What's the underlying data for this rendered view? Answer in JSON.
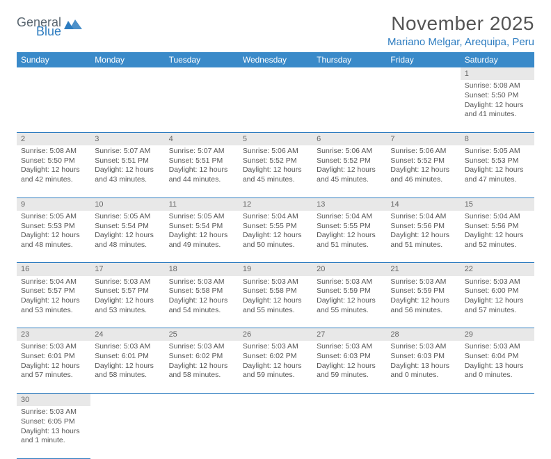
{
  "logo": {
    "general": "General",
    "blue": "Blue",
    "icon_color": "#2d7cc0"
  },
  "title": "November 2025",
  "location": "Mariano Melgar, Arequipa, Peru",
  "colors": {
    "header_bg": "#3a8ac9",
    "accent": "#2d7cc0",
    "daynum_bg": "#e8e8e8",
    "text": "#555555"
  },
  "day_headers": [
    "Sunday",
    "Monday",
    "Tuesday",
    "Wednesday",
    "Thursday",
    "Friday",
    "Saturday"
  ],
  "weeks": [
    {
      "nums": [
        "",
        "",
        "",
        "",
        "",
        "",
        "1"
      ],
      "cells": [
        null,
        null,
        null,
        null,
        null,
        null,
        {
          "sunrise": "Sunrise: 5:08 AM",
          "sunset": "Sunset: 5:50 PM",
          "daylight": "Daylight: 12 hours and 41 minutes."
        }
      ]
    },
    {
      "nums": [
        "2",
        "3",
        "4",
        "5",
        "6",
        "7",
        "8"
      ],
      "cells": [
        {
          "sunrise": "Sunrise: 5:08 AM",
          "sunset": "Sunset: 5:50 PM",
          "daylight": "Daylight: 12 hours and 42 minutes."
        },
        {
          "sunrise": "Sunrise: 5:07 AM",
          "sunset": "Sunset: 5:51 PM",
          "daylight": "Daylight: 12 hours and 43 minutes."
        },
        {
          "sunrise": "Sunrise: 5:07 AM",
          "sunset": "Sunset: 5:51 PM",
          "daylight": "Daylight: 12 hours and 44 minutes."
        },
        {
          "sunrise": "Sunrise: 5:06 AM",
          "sunset": "Sunset: 5:52 PM",
          "daylight": "Daylight: 12 hours and 45 minutes."
        },
        {
          "sunrise": "Sunrise: 5:06 AM",
          "sunset": "Sunset: 5:52 PM",
          "daylight": "Daylight: 12 hours and 45 minutes."
        },
        {
          "sunrise": "Sunrise: 5:06 AM",
          "sunset": "Sunset: 5:52 PM",
          "daylight": "Daylight: 12 hours and 46 minutes."
        },
        {
          "sunrise": "Sunrise: 5:05 AM",
          "sunset": "Sunset: 5:53 PM",
          "daylight": "Daylight: 12 hours and 47 minutes."
        }
      ]
    },
    {
      "nums": [
        "9",
        "10",
        "11",
        "12",
        "13",
        "14",
        "15"
      ],
      "cells": [
        {
          "sunrise": "Sunrise: 5:05 AM",
          "sunset": "Sunset: 5:53 PM",
          "daylight": "Daylight: 12 hours and 48 minutes."
        },
        {
          "sunrise": "Sunrise: 5:05 AM",
          "sunset": "Sunset: 5:54 PM",
          "daylight": "Daylight: 12 hours and 48 minutes."
        },
        {
          "sunrise": "Sunrise: 5:05 AM",
          "sunset": "Sunset: 5:54 PM",
          "daylight": "Daylight: 12 hours and 49 minutes."
        },
        {
          "sunrise": "Sunrise: 5:04 AM",
          "sunset": "Sunset: 5:55 PM",
          "daylight": "Daylight: 12 hours and 50 minutes."
        },
        {
          "sunrise": "Sunrise: 5:04 AM",
          "sunset": "Sunset: 5:55 PM",
          "daylight": "Daylight: 12 hours and 51 minutes."
        },
        {
          "sunrise": "Sunrise: 5:04 AM",
          "sunset": "Sunset: 5:56 PM",
          "daylight": "Daylight: 12 hours and 51 minutes."
        },
        {
          "sunrise": "Sunrise: 5:04 AM",
          "sunset": "Sunset: 5:56 PM",
          "daylight": "Daylight: 12 hours and 52 minutes."
        }
      ]
    },
    {
      "nums": [
        "16",
        "17",
        "18",
        "19",
        "20",
        "21",
        "22"
      ],
      "cells": [
        {
          "sunrise": "Sunrise: 5:04 AM",
          "sunset": "Sunset: 5:57 PM",
          "daylight": "Daylight: 12 hours and 53 minutes."
        },
        {
          "sunrise": "Sunrise: 5:03 AM",
          "sunset": "Sunset: 5:57 PM",
          "daylight": "Daylight: 12 hours and 53 minutes."
        },
        {
          "sunrise": "Sunrise: 5:03 AM",
          "sunset": "Sunset: 5:58 PM",
          "daylight": "Daylight: 12 hours and 54 minutes."
        },
        {
          "sunrise": "Sunrise: 5:03 AM",
          "sunset": "Sunset: 5:58 PM",
          "daylight": "Daylight: 12 hours and 55 minutes."
        },
        {
          "sunrise": "Sunrise: 5:03 AM",
          "sunset": "Sunset: 5:59 PM",
          "daylight": "Daylight: 12 hours and 55 minutes."
        },
        {
          "sunrise": "Sunrise: 5:03 AM",
          "sunset": "Sunset: 5:59 PM",
          "daylight": "Daylight: 12 hours and 56 minutes."
        },
        {
          "sunrise": "Sunrise: 5:03 AM",
          "sunset": "Sunset: 6:00 PM",
          "daylight": "Daylight: 12 hours and 57 minutes."
        }
      ]
    },
    {
      "nums": [
        "23",
        "24",
        "25",
        "26",
        "27",
        "28",
        "29"
      ],
      "cells": [
        {
          "sunrise": "Sunrise: 5:03 AM",
          "sunset": "Sunset: 6:01 PM",
          "daylight": "Daylight: 12 hours and 57 minutes."
        },
        {
          "sunrise": "Sunrise: 5:03 AM",
          "sunset": "Sunset: 6:01 PM",
          "daylight": "Daylight: 12 hours and 58 minutes."
        },
        {
          "sunrise": "Sunrise: 5:03 AM",
          "sunset": "Sunset: 6:02 PM",
          "daylight": "Daylight: 12 hours and 58 minutes."
        },
        {
          "sunrise": "Sunrise: 5:03 AM",
          "sunset": "Sunset: 6:02 PM",
          "daylight": "Daylight: 12 hours and 59 minutes."
        },
        {
          "sunrise": "Sunrise: 5:03 AM",
          "sunset": "Sunset: 6:03 PM",
          "daylight": "Daylight: 12 hours and 59 minutes."
        },
        {
          "sunrise": "Sunrise: 5:03 AM",
          "sunset": "Sunset: 6:03 PM",
          "daylight": "Daylight: 13 hours and 0 minutes."
        },
        {
          "sunrise": "Sunrise: 5:03 AM",
          "sunset": "Sunset: 6:04 PM",
          "daylight": "Daylight: 13 hours and 0 minutes."
        }
      ]
    },
    {
      "nums": [
        "30",
        "",
        "",
        "",
        "",
        "",
        ""
      ],
      "cells": [
        {
          "sunrise": "Sunrise: 5:03 AM",
          "sunset": "Sunset: 6:05 PM",
          "daylight": "Daylight: 13 hours and 1 minute."
        },
        null,
        null,
        null,
        null,
        null,
        null
      ]
    }
  ]
}
